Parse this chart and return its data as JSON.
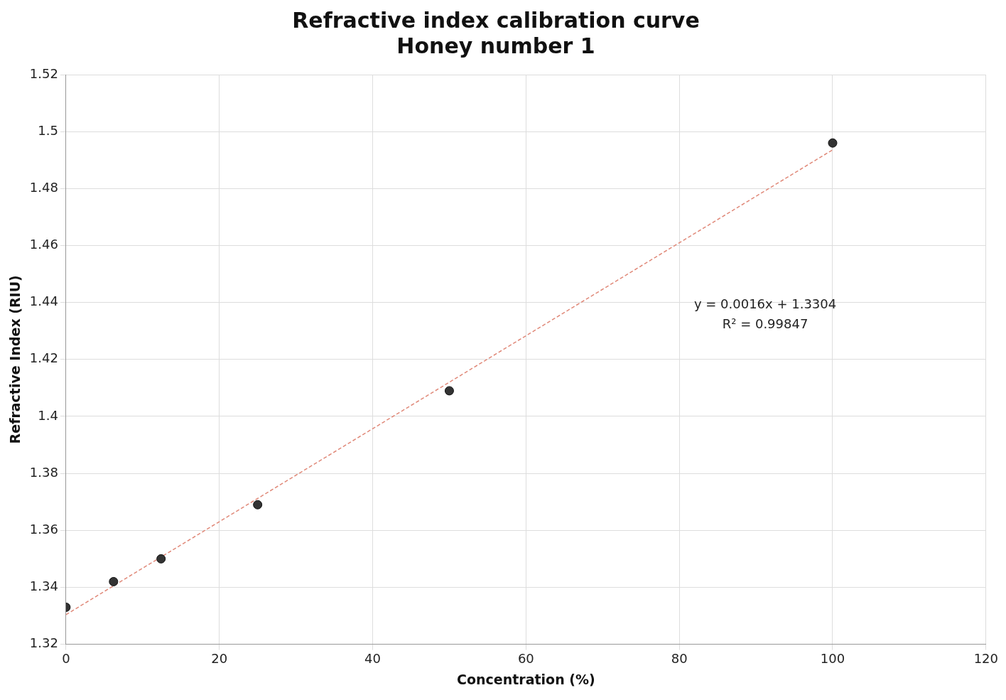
{
  "chart_data": {
    "type": "scatter",
    "title": "Refractive index calibration curve",
    "subtitle": "Honey number 1",
    "xlabel": "Concentration (%)",
    "ylabel": "Refractive Index (RIU)",
    "xlim": [
      0,
      120
    ],
    "xticks": [
      0,
      20,
      40,
      60,
      80,
      100,
      120
    ],
    "ylim": [
      1.32,
      1.52
    ],
    "yticks": [
      1.32,
      1.34,
      1.36,
      1.38,
      1.4,
      1.42,
      1.44,
      1.46,
      1.48,
      1.5,
      1.52
    ],
    "grid": true,
    "legend": false,
    "marker": "circle",
    "series": [
      {
        "color": "#333333",
        "x": [
          0,
          6.2,
          12.4,
          25,
          50,
          100
        ],
        "values": [
          1.333,
          1.342,
          1.35,
          1.369,
          1.409,
          1.496
        ]
      },
      {
        "type": "line",
        "color": "#e08878",
        "line_style": "dashed",
        "marker": "none",
        "x": [
          0,
          100
        ],
        "values": [
          1.3304,
          1.4936
        ]
      }
    ],
    "annotations": [
      "y = 0.0016x + 1.3304",
      "R² = 0.99847"
    ]
  }
}
